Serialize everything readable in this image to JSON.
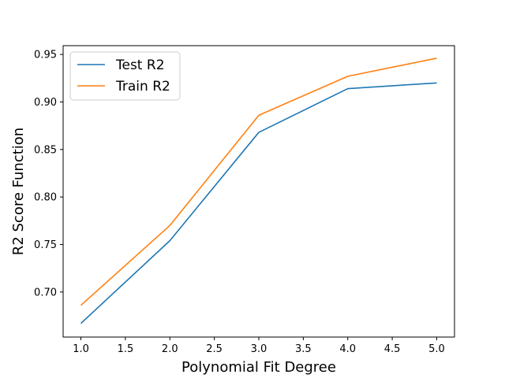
{
  "chart_data": {
    "type": "line",
    "title": "",
    "xlabel": "Polynomial Fit Degree",
    "ylabel": "R2 Score Function",
    "x": [
      1.0,
      2.0,
      3.0,
      4.0,
      5.0
    ],
    "xlim": [
      0.8,
      5.2
    ],
    "ylim": [
      0.6526,
      0.9592
    ],
    "x_ticks": [
      "1.0",
      "1.5",
      "2.0",
      "2.5",
      "3.0",
      "3.5",
      "4.0",
      "4.5",
      "5.0"
    ],
    "y_ticks": [
      "0.70",
      "0.75",
      "0.80",
      "0.85",
      "0.90",
      "0.95"
    ],
    "grid": false,
    "legend_position": "top-left",
    "series": [
      {
        "name": "Test R2",
        "color": "#1f77b4",
        "values": [
          0.667,
          0.754,
          0.868,
          0.914,
          0.92
        ]
      },
      {
        "name": "Train R2",
        "color": "#ff7f0e",
        "values": [
          0.686,
          0.77,
          0.886,
          0.927,
          0.946
        ]
      }
    ]
  }
}
